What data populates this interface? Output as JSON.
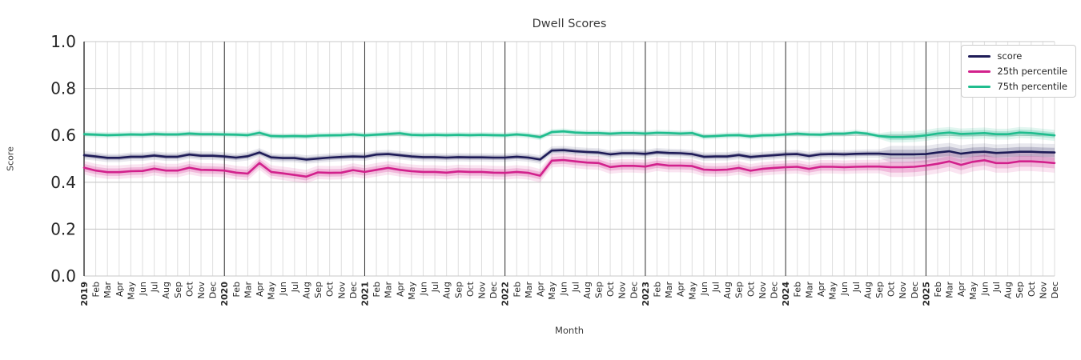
{
  "chart_data": {
    "type": "line",
    "title": "Dwell Scores",
    "xlabel": "Month",
    "ylabel": "Score",
    "ylim": [
      0.0,
      1.0
    ],
    "yticks": [
      "0.0",
      "0.2",
      "0.4",
      "0.6",
      "0.8",
      "1.0"
    ],
    "grid": true,
    "legend_position": "upper right",
    "x_tick_labels": [
      "2019",
      "Feb",
      "Mar",
      "Apr",
      "May",
      "Jun",
      "Jul",
      "Aug",
      "Sep",
      "Oct",
      "Nov",
      "Dec",
      "2020",
      "Feb",
      "Mar",
      "Apr",
      "May",
      "Jun",
      "Jul",
      "Aug",
      "Sep",
      "Oct",
      "Nov",
      "Dec",
      "2021",
      "Feb",
      "Mar",
      "Apr",
      "May",
      "Jun",
      "Jul",
      "Aug",
      "Sep",
      "Oct",
      "Nov",
      "Dec",
      "2022",
      "Feb",
      "Mar",
      "Apr",
      "May",
      "Jun",
      "Jul",
      "Aug",
      "Sep",
      "Oct",
      "Nov",
      "Dec",
      "2023",
      "Feb",
      "Mar",
      "Apr",
      "May",
      "Jun",
      "Jul",
      "Aug",
      "Sep",
      "Oct",
      "Nov",
      "Dec",
      "2024",
      "Feb",
      "Mar",
      "Apr",
      "May",
      "Jun",
      "Jul",
      "Aug",
      "Sep",
      "Oct",
      "Nov",
      "Dec",
      "2025",
      "Feb",
      "Mar",
      "Apr",
      "May",
      "Jun",
      "Jul",
      "Aug",
      "Sep",
      "Oct",
      "Nov",
      "Dec"
    ],
    "series": [
      {
        "name": "score",
        "color": "#1e1b57",
        "band_color": "rgba(30,27,87,0.20)",
        "band_outer_color": "rgba(30,27,87,0.10)",
        "band_base": 0.01,
        "band_late": 0.02,
        "band_late_start": 69,
        "values": [
          0.515,
          0.51,
          0.504,
          0.504,
          0.509,
          0.509,
          0.514,
          0.509,
          0.509,
          0.518,
          0.513,
          0.513,
          0.51,
          0.505,
          0.511,
          0.527,
          0.506,
          0.503,
          0.503,
          0.497,
          0.501,
          0.505,
          0.508,
          0.51,
          0.509,
          0.518,
          0.52,
          0.515,
          0.51,
          0.507,
          0.507,
          0.505,
          0.507,
          0.506,
          0.506,
          0.505,
          0.505,
          0.509,
          0.505,
          0.497,
          0.535,
          0.537,
          0.532,
          0.529,
          0.527,
          0.519,
          0.524,
          0.524,
          0.521,
          0.528,
          0.525,
          0.524,
          0.52,
          0.509,
          0.51,
          0.51,
          0.516,
          0.508,
          0.512,
          0.515,
          0.519,
          0.52,
          0.512,
          0.519,
          0.52,
          0.519,
          0.521,
          0.522,
          0.522,
          0.519,
          0.519,
          0.519,
          0.52,
          0.527,
          0.532,
          0.522,
          0.528,
          0.53,
          0.525,
          0.527,
          0.53,
          0.53,
          0.528,
          0.527
        ]
      },
      {
        "name": "25th percentile",
        "color": "#d2218c",
        "band_color": "rgba(210,33,140,0.22)",
        "band_outer_color": "rgba(210,33,140,0.12)",
        "band_base": 0.016,
        "band_late": 0.023,
        "band_late_start": 69,
        "values": [
          0.462,
          0.45,
          0.443,
          0.443,
          0.447,
          0.448,
          0.458,
          0.45,
          0.45,
          0.462,
          0.453,
          0.452,
          0.45,
          0.441,
          0.437,
          0.482,
          0.444,
          0.438,
          0.431,
          0.424,
          0.442,
          0.44,
          0.441,
          0.452,
          0.444,
          0.453,
          0.461,
          0.453,
          0.447,
          0.444,
          0.444,
          0.441,
          0.446,
          0.444,
          0.444,
          0.441,
          0.44,
          0.444,
          0.44,
          0.428,
          0.492,
          0.495,
          0.489,
          0.484,
          0.482,
          0.465,
          0.47,
          0.47,
          0.467,
          0.477,
          0.471,
          0.471,
          0.469,
          0.454,
          0.452,
          0.454,
          0.461,
          0.449,
          0.457,
          0.461,
          0.464,
          0.466,
          0.457,
          0.466,
          0.466,
          0.464,
          0.466,
          0.467,
          0.467,
          0.464,
          0.464,
          0.466,
          0.471,
          0.479,
          0.489,
          0.474,
          0.487,
          0.494,
          0.482,
          0.482,
          0.489,
          0.489,
          0.486,
          0.482
        ]
      },
      {
        "name": "75th percentile",
        "color": "#20bd8e",
        "band_color": "rgba(32,189,142,0.25)",
        "band_outer_color": "rgba(32,189,142,0.13)",
        "band_base": 0.007,
        "band_late": 0.013,
        "band_late_start": 69,
        "values": [
          0.605,
          0.603,
          0.601,
          0.602,
          0.604,
          0.603,
          0.606,
          0.604,
          0.604,
          0.608,
          0.605,
          0.605,
          0.604,
          0.603,
          0.601,
          0.611,
          0.597,
          0.596,
          0.597,
          0.596,
          0.599,
          0.6,
          0.601,
          0.604,
          0.6,
          0.603,
          0.606,
          0.609,
          0.602,
          0.601,
          0.602,
          0.601,
          0.602,
          0.601,
          0.602,
          0.601,
          0.6,
          0.604,
          0.6,
          0.592,
          0.614,
          0.617,
          0.612,
          0.61,
          0.61,
          0.607,
          0.61,
          0.61,
          0.608,
          0.611,
          0.61,
          0.608,
          0.61,
          0.595,
          0.597,
          0.6,
          0.601,
          0.596,
          0.6,
          0.601,
          0.604,
          0.607,
          0.604,
          0.603,
          0.607,
          0.607,
          0.612,
          0.607,
          0.597,
          0.593,
          0.593,
          0.595,
          0.6,
          0.608,
          0.612,
          0.606,
          0.608,
          0.61,
          0.605,
          0.605,
          0.612,
          0.61,
          0.605,
          0.6
        ]
      }
    ],
    "colors": {
      "grid_minor_vertical": "#dedede",
      "grid_horizontal": "#c9c9c9",
      "year_line": "#2e2e2e",
      "spine": "#2e2e2e",
      "tick_text": "#262626",
      "title_text": "#3a3a3a"
    }
  }
}
